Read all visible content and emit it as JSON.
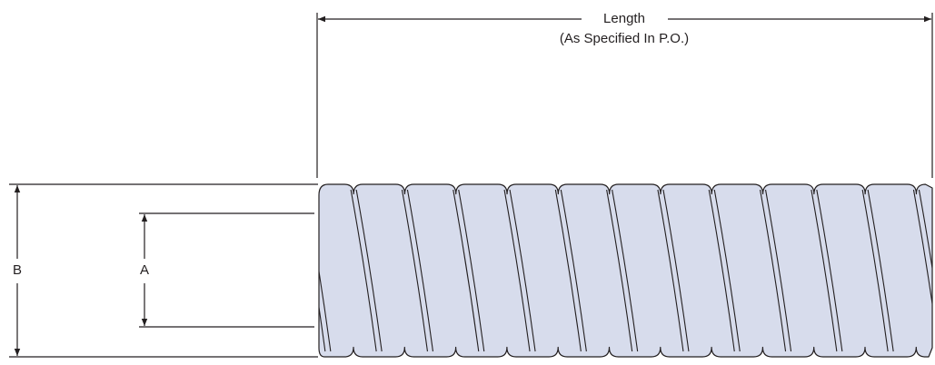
{
  "labels": {
    "length": "Length",
    "length_note": "(As Specified In P.O.)",
    "dim_b": "B",
    "dim_a": "A"
  },
  "colors": {
    "line": "#231f20",
    "fill": "#d7dcec"
  }
}
